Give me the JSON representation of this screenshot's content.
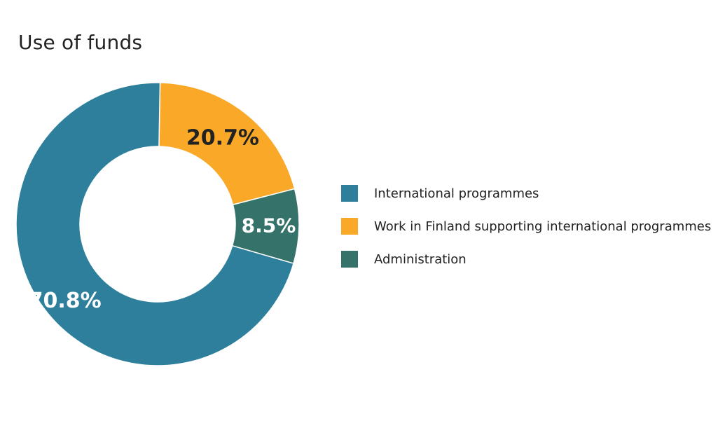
{
  "chart_data": {
    "type": "pie",
    "title": "Use of funds",
    "categories": [
      "International programmes",
      "Work in Finland supporting international programmes",
      "Administration"
    ],
    "values": [
      70.8,
      20.7,
      8.5
    ],
    "labels": [
      "70.8%",
      "20.7%",
      "8.5%"
    ],
    "colors": [
      "#2e7f9c",
      "#f9a827",
      "#35726a"
    ],
    "label_colors": [
      "#ffffff",
      "#222222",
      "#ffffff"
    ],
    "donut": true,
    "legend_position": "right"
  }
}
